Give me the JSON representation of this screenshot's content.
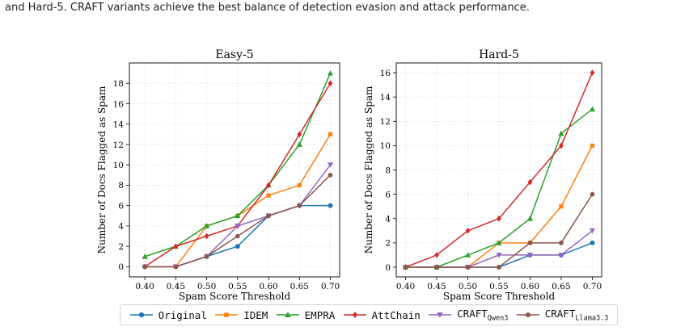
{
  "caption": "and Hard-5. CRAFT variants achieve the best balance of detection evasion and attack performance.",
  "colors": {
    "Original": "#1f77b4",
    "IDEM": "#ff7f0e",
    "EMPRA": "#2ca02c",
    "AttChain": "#d62728",
    "CRAFT_Qwen3": "#9467bd",
    "CRAFT_Llama3.3": "#8c564b"
  },
  "legend": [
    {
      "key": "Original",
      "label": "Original",
      "sub": "",
      "marker": "circle"
    },
    {
      "key": "IDEM",
      "label": "IDEM",
      "sub": "",
      "marker": "square"
    },
    {
      "key": "EMPRA",
      "label": "EMPRA",
      "sub": "",
      "marker": "triangle-up"
    },
    {
      "key": "AttChain",
      "label": "AttChain",
      "sub": "",
      "marker": "diamond"
    },
    {
      "key": "CRAFT_Qwen3",
      "label": "CRAFT",
      "sub": "Qwen3",
      "marker": "triangle-down"
    },
    {
      "key": "CRAFT_Llama3.3",
      "label": "CRAFT",
      "sub": "Llama3.3",
      "marker": "hexagon"
    }
  ],
  "chart_data": [
    {
      "type": "line",
      "title": "Easy-5",
      "xlabel": "Spam Score Threshold",
      "ylabel": "Number of Docs Flagged as Spam",
      "x": [
        0.4,
        0.45,
        0.5,
        0.55,
        0.6,
        0.65,
        0.7
      ],
      "x_tick_labels": [
        "0.40",
        "0.45",
        "0.50",
        "0.55",
        "0.60",
        "0.65",
        "0.70"
      ],
      "xlim": [
        0.375,
        0.715
      ],
      "ylim": [
        -1,
        20
      ],
      "y_ticks": [
        0,
        2,
        4,
        6,
        8,
        10,
        12,
        14,
        16,
        18
      ],
      "grid": true,
      "series": [
        {
          "name": "Original",
          "values": [
            0,
            0,
            1,
            2,
            5,
            6,
            6
          ]
        },
        {
          "name": "IDEM",
          "values": [
            0,
            0,
            4,
            5,
            7,
            8,
            13
          ]
        },
        {
          "name": "EMPRA",
          "values": [
            1,
            2,
            4,
            5,
            8,
            12,
            19
          ]
        },
        {
          "name": "AttChain",
          "values": [
            0,
            2,
            3,
            4,
            8,
            13,
            18
          ]
        },
        {
          "name": "CRAFT_Qwen3",
          "values": [
            0,
            0,
            1,
            4,
            5,
            6,
            10
          ]
        },
        {
          "name": "CRAFT_Llama3.3",
          "values": [
            0,
            0,
            1,
            3,
            5,
            6,
            9
          ]
        }
      ]
    },
    {
      "type": "line",
      "title": "Hard-5",
      "xlabel": "Spam Score Threshold",
      "ylabel": "Number of Docs Flagged as Spam",
      "x": [
        0.4,
        0.45,
        0.5,
        0.55,
        0.6,
        0.65,
        0.7
      ],
      "x_tick_labels": [
        "0.40",
        "0.45",
        "0.50",
        "0.55",
        "0.60",
        "0.65",
        "0.70"
      ],
      "xlim": [
        0.385,
        0.715
      ],
      "ylim": [
        -0.8,
        16.8
      ],
      "y_ticks": [
        0,
        2,
        4,
        6,
        8,
        10,
        12,
        14,
        16
      ],
      "grid": true,
      "series": [
        {
          "name": "Original",
          "values": [
            0,
            0,
            0,
            0,
            1,
            1,
            2
          ]
        },
        {
          "name": "IDEM",
          "values": [
            0,
            0,
            0,
            2,
            2,
            5,
            10
          ]
        },
        {
          "name": "EMPRA",
          "values": [
            0,
            0,
            1,
            2,
            4,
            11,
            13
          ]
        },
        {
          "name": "AttChain",
          "values": [
            0,
            1,
            3,
            4,
            7,
            10,
            16
          ]
        },
        {
          "name": "CRAFT_Qwen3",
          "values": [
            0,
            0,
            0,
            1,
            1,
            1,
            3
          ]
        },
        {
          "name": "CRAFT_Llama3.3",
          "values": [
            0,
            0,
            0,
            0,
            2,
            2,
            6
          ]
        }
      ]
    }
  ]
}
